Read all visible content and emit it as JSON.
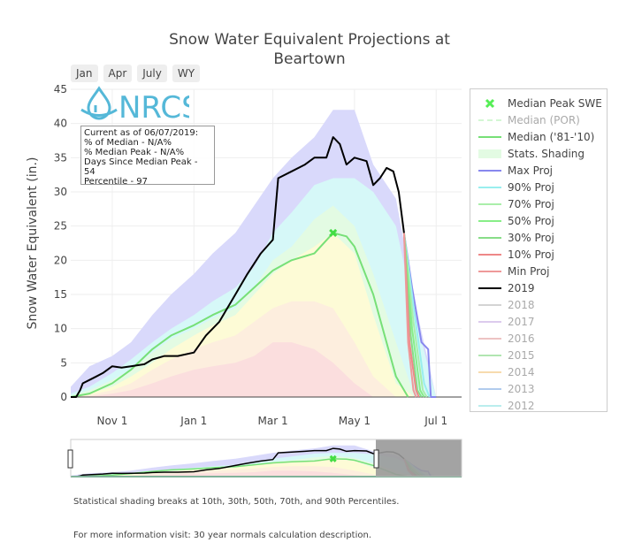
{
  "chart_data": {
    "type": "area",
    "title": "Snow Water Equivalent Projections at Beartown",
    "ylabel": "Snow Water Equivalent (in.)",
    "xlabel": "",
    "ylim": [
      0,
      45
    ],
    "xlim": [
      "2018-10-01",
      "2019-07-20"
    ],
    "y_ticks": [
      0,
      5,
      10,
      15,
      20,
      25,
      30,
      35,
      40,
      45
    ],
    "x_ticks": [
      {
        "date": "2018-11-01",
        "label": "Nov 1"
      },
      {
        "date": "2019-01-01",
        "label": "Jan 1"
      },
      {
        "date": "2019-03-01",
        "label": "Mar 1"
      },
      {
        "date": "2019-05-01",
        "label": "May 1"
      },
      {
        "date": "2019-07-01",
        "label": "Jul 1"
      }
    ],
    "grid": true,
    "legend_position": "right",
    "range_buttons": [
      "Jan",
      "Apr",
      "July",
      "WY"
    ],
    "info_box": [
      "Current as of 06/07/2019:",
      "% of Median - N/A%",
      "% Median Peak - N/A%",
      "Days Since Median Peak - 54",
      "Percentile - 97"
    ],
    "logo_text": "NRCS",
    "median_peak": {
      "name": "Median Peak SWE",
      "date": "2019-04-15",
      "value": 24
    },
    "shading": {
      "dates": [
        "2018-10-01",
        "2018-10-15",
        "2018-11-01",
        "2018-11-15",
        "2018-12-01",
        "2018-12-15",
        "2019-01-01",
        "2019-01-15",
        "2019-02-01",
        "2019-02-15",
        "2019-03-01",
        "2019-03-15",
        "2019-04-01",
        "2019-04-15",
        "2019-05-01",
        "2019-05-15",
        "2019-06-01",
        "2019-06-15",
        "2019-07-01"
      ],
      "max": [
        1.5,
        4.5,
        6,
        8,
        12,
        15,
        18,
        21,
        24,
        28,
        32,
        35,
        38,
        42,
        42,
        34,
        29,
        14,
        0
      ],
      "p90": [
        0.5,
        1.5,
        3.5,
        5.5,
        8,
        10,
        12,
        14,
        16,
        19,
        24,
        27,
        31,
        32,
        32,
        30,
        25,
        12,
        0
      ],
      "p70": [
        0.2,
        1,
        2.5,
        4,
        6.5,
        8.5,
        10,
        11.5,
        13,
        16,
        20,
        22,
        26,
        28,
        25,
        18,
        8,
        0,
        0
      ],
      "p50": [
        0,
        0.5,
        1.5,
        3,
        5,
        7,
        9,
        10.5,
        12,
        15,
        18,
        20,
        22,
        24,
        21,
        12,
        2,
        0,
        0
      ],
      "p30": [
        0,
        0.3,
        1,
        2,
        4,
        5.5,
        7,
        8,
        9,
        11,
        13,
        14,
        14,
        13,
        8,
        3,
        0,
        0,
        0
      ],
      "p10": [
        0,
        0.1,
        0.5,
        1,
        2,
        3,
        4,
        4.5,
        5,
        6,
        8,
        8,
        7,
        5,
        2,
        0,
        0,
        0,
        0
      ],
      "min": [
        0,
        0,
        0.2,
        0.5,
        1,
        1.5,
        2,
        2.5,
        3,
        4,
        5,
        5.5,
        5,
        3,
        1,
        0,
        0,
        0,
        0
      ]
    },
    "series": [
      {
        "name": "Median ('81-'10)",
        "x": [
          "2018-10-01",
          "2018-10-15",
          "2018-11-01",
          "2018-11-15",
          "2018-12-01",
          "2018-12-15",
          "2019-01-01",
          "2019-01-15",
          "2019-02-01",
          "2019-02-15",
          "2019-03-01",
          "2019-03-15",
          "2019-04-01",
          "2019-04-15",
          "2019-04-25",
          "2019-05-01",
          "2019-05-15",
          "2019-06-01",
          "2019-06-10"
        ],
        "values": [
          0,
          0.5,
          2,
          4,
          7,
          9,
          10.5,
          12,
          13.5,
          16,
          18.5,
          20,
          21,
          24,
          23.5,
          22,
          15,
          3,
          0
        ]
      },
      {
        "name": "2019",
        "x": [
          "2018-10-01",
          "2018-10-05",
          "2018-10-08",
          "2018-10-10",
          "2018-10-15",
          "2018-10-20",
          "2018-10-25",
          "2018-11-01",
          "2018-11-08",
          "2018-11-15",
          "2018-11-25",
          "2018-12-01",
          "2018-12-10",
          "2018-12-20",
          "2019-01-01",
          "2019-01-10",
          "2019-01-20",
          "2019-02-01",
          "2019-02-10",
          "2019-02-20",
          "2019-03-01",
          "2019-03-05",
          "2019-03-15",
          "2019-03-25",
          "2019-04-01",
          "2019-04-10",
          "2019-04-15",
          "2019-04-20",
          "2019-04-25",
          "2019-05-01",
          "2019-05-10",
          "2019-05-15",
          "2019-05-20",
          "2019-05-25",
          "2019-05-30",
          "2019-06-03",
          "2019-06-07"
        ],
        "values": [
          0,
          0,
          1,
          2,
          2.5,
          3,
          3.5,
          4.5,
          4.3,
          4.5,
          4.8,
          5.5,
          6,
          6,
          6.5,
          9,
          11,
          15,
          18,
          21,
          23,
          32,
          33,
          34,
          35,
          35,
          38,
          37,
          34,
          35,
          34.5,
          31,
          32,
          33.5,
          33,
          30,
          24
        ]
      },
      {
        "name": "Max Proj",
        "x": [
          "2019-06-07",
          "2019-06-13",
          "2019-06-20",
          "2019-06-25",
          "2019-06-27",
          "2019-07-01"
        ],
        "values": [
          24,
          16,
          8,
          7,
          0,
          0
        ]
      },
      {
        "name": "90% Proj",
        "x": [
          "2019-06-07",
          "2019-06-15",
          "2019-06-22",
          "2019-06-26"
        ],
        "values": [
          24,
          12,
          2,
          0
        ]
      },
      {
        "name": "70% Proj",
        "x": [
          "2019-06-07",
          "2019-06-14",
          "2019-06-21",
          "2019-06-24"
        ],
        "values": [
          24,
          11,
          1,
          0
        ]
      },
      {
        "name": "50% Proj",
        "x": [
          "2019-06-07",
          "2019-06-13",
          "2019-06-19",
          "2019-06-22"
        ],
        "values": [
          24,
          10,
          1,
          0
        ]
      },
      {
        "name": "30% Proj",
        "x": [
          "2019-06-07",
          "2019-06-12",
          "2019-06-17",
          "2019-06-20"
        ],
        "values": [
          24,
          9,
          1,
          0
        ]
      },
      {
        "name": "10% Proj",
        "x": [
          "2019-06-07",
          "2019-06-11",
          "2019-06-16",
          "2019-06-18"
        ],
        "values": [
          24,
          8,
          1,
          0
        ]
      },
      {
        "name": "Min Proj",
        "x": [
          "2019-06-07",
          "2019-06-10",
          "2019-06-14",
          "2019-06-16"
        ],
        "values": [
          24,
          8,
          1,
          0
        ]
      }
    ],
    "legend": [
      {
        "name": "Median Peak SWE",
        "symbol": "cross",
        "color": "#55ee55",
        "dimmed": false
      },
      {
        "name": "Median (POR)",
        "symbol": "dash",
        "color": "#a8f0a8",
        "dimmed": true
      },
      {
        "name": "Median ('81-'10)",
        "symbol": "line",
        "color": "#77e077",
        "dimmed": false
      },
      {
        "name": "Stats. Shading",
        "symbol": "area",
        "color": "#e3fbe3",
        "dimmed": false
      },
      {
        "name": "Max Proj",
        "symbol": "line",
        "color": "#8888ee",
        "dimmed": false
      },
      {
        "name": "90% Proj",
        "symbol": "line",
        "color": "#99eeee",
        "dimmed": false
      },
      {
        "name": "70% Proj",
        "symbol": "line",
        "color": "#aaeeaa",
        "dimmed": false
      },
      {
        "name": "50% Proj",
        "symbol": "line",
        "color": "#88ee88",
        "dimmed": false
      },
      {
        "name": "30% Proj",
        "symbol": "line",
        "color": "#88dd88",
        "dimmed": false
      },
      {
        "name": "10% Proj",
        "symbol": "line",
        "color": "#ee8888",
        "dimmed": false
      },
      {
        "name": "Min Proj",
        "symbol": "line",
        "color": "#ee9999",
        "dimmed": false
      },
      {
        "name": "2019",
        "symbol": "line",
        "color": "#000000",
        "dimmed": false
      },
      {
        "name": "2018",
        "symbol": "line",
        "color": "#aaaaaa",
        "dimmed": true
      },
      {
        "name": "2017",
        "symbol": "line",
        "color": "#bb99dd",
        "dimmed": true
      },
      {
        "name": "2016",
        "symbol": "line",
        "color": "#dd8888",
        "dimmed": true
      },
      {
        "name": "2015",
        "symbol": "line",
        "color": "#66cc66",
        "dimmed": true
      },
      {
        "name": "2014",
        "symbol": "line",
        "color": "#f0b860",
        "dimmed": true
      },
      {
        "name": "2013",
        "symbol": "line",
        "color": "#6699dd",
        "dimmed": true
      },
      {
        "name": "2012",
        "symbol": "line",
        "color": "#77dddd",
        "dimmed": true
      }
    ],
    "colors": {
      "max": "#d9d9fb",
      "p90": "#d6f8f8",
      "p70": "#e3fbe3",
      "p50": "#fdfbd6",
      "p30": "#fdeede",
      "p10": "#fbdede",
      "median": "#77e077",
      "year2019": "#000000",
      "proj_max": "#8888ee",
      "proj_90": "#99eeee",
      "proj_70": "#aaeeaa",
      "proj_50": "#88ee88",
      "proj_30": "#88dd88",
      "proj_10": "#ee8888",
      "proj_min": "#ee9999"
    }
  },
  "footer": {
    "note": "Statistical shading breaks at 10th, 30th, 50th, 70th, and 90th Percentiles.",
    "more_info": "For more information visit: 30 year normals calculation description."
  }
}
